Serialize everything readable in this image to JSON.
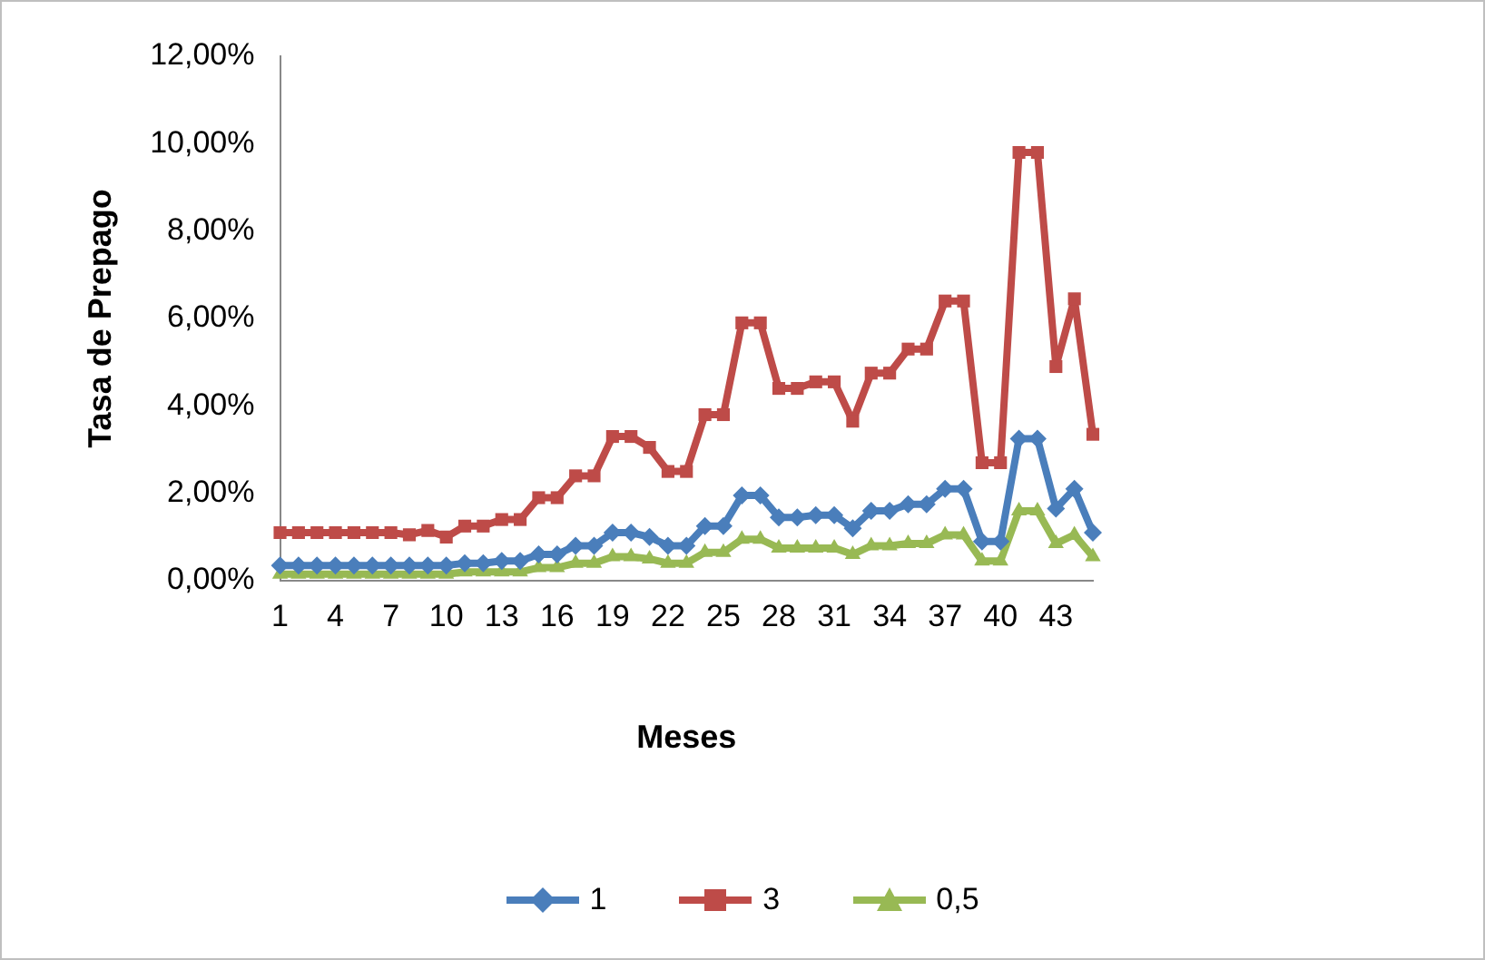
{
  "chart_data": {
    "type": "line",
    "xlabel": "Meses",
    "ylabel": "Tasa de Prepago",
    "categories": [
      "1",
      null,
      null,
      "4",
      null,
      null,
      "7",
      null,
      null,
      "10",
      null,
      null,
      "13",
      null,
      null,
      "16",
      null,
      null,
      "19",
      null,
      null,
      "22",
      null,
      null,
      "25",
      null,
      null,
      "28",
      null,
      null,
      "31",
      null,
      null,
      "34",
      null,
      null,
      "37",
      null,
      null,
      "40",
      null,
      null,
      "43",
      null,
      null
    ],
    "ylim": [
      0,
      12
    ],
    "yticks": [
      {
        "value": 0,
        "label": "0,00%"
      },
      {
        "value": 2,
        "label": "2,00%"
      },
      {
        "value": 4,
        "label": "4,00%"
      },
      {
        "value": 6,
        "label": "6,00%"
      },
      {
        "value": 8,
        "label": "8,00%"
      },
      {
        "value": 10,
        "label": "10,00%"
      },
      {
        "value": 12,
        "label": "12,00%"
      }
    ],
    "grid": false,
    "legend": "bottom",
    "line_style": "solid",
    "series": [
      {
        "name": "1",
        "color": "#4a7ebb",
        "marker": "diamond",
        "values": [
          0.35,
          0.35,
          0.35,
          0.35,
          0.35,
          0.35,
          0.35,
          0.35,
          0.35,
          0.35,
          0.4,
          0.4,
          0.45,
          0.45,
          0.6,
          0.6,
          0.8,
          0.8,
          1.1,
          1.1,
          1.0,
          0.8,
          0.8,
          1.25,
          1.25,
          1.95,
          1.95,
          1.45,
          1.45,
          1.5,
          1.5,
          1.2,
          1.6,
          1.6,
          1.75,
          1.75,
          2.1,
          2.1,
          0.9,
          0.9,
          3.25,
          3.25,
          1.65,
          2.1,
          1.1
        ]
      },
      {
        "name": "3",
        "color": "#be4b48",
        "marker": "square",
        "values": [
          1.1,
          1.1,
          1.1,
          1.1,
          1.1,
          1.1,
          1.1,
          1.05,
          1.15,
          1.0,
          1.25,
          1.25,
          1.4,
          1.4,
          1.9,
          1.9,
          2.4,
          2.4,
          3.3,
          3.3,
          3.05,
          2.5,
          2.5,
          3.8,
          3.8,
          5.9,
          5.9,
          4.4,
          4.4,
          4.55,
          4.55,
          3.65,
          4.75,
          4.75,
          5.3,
          5.3,
          6.4,
          6.4,
          2.7,
          2.7,
          9.8,
          9.8,
          4.9,
          6.45,
          3.35
        ]
      },
      {
        "name": "0,5",
        "color": "#98b954",
        "marker": "triangle",
        "values": [
          0.15,
          0.15,
          0.15,
          0.15,
          0.15,
          0.15,
          0.15,
          0.15,
          0.15,
          0.15,
          0.2,
          0.2,
          0.2,
          0.2,
          0.3,
          0.3,
          0.4,
          0.4,
          0.55,
          0.55,
          0.5,
          0.4,
          0.4,
          0.65,
          0.65,
          0.95,
          0.95,
          0.75,
          0.75,
          0.75,
          0.75,
          0.6,
          0.8,
          0.8,
          0.85,
          0.85,
          1.05,
          1.05,
          0.45,
          0.45,
          1.6,
          1.6,
          0.85,
          1.05,
          0.55
        ]
      }
    ]
  }
}
